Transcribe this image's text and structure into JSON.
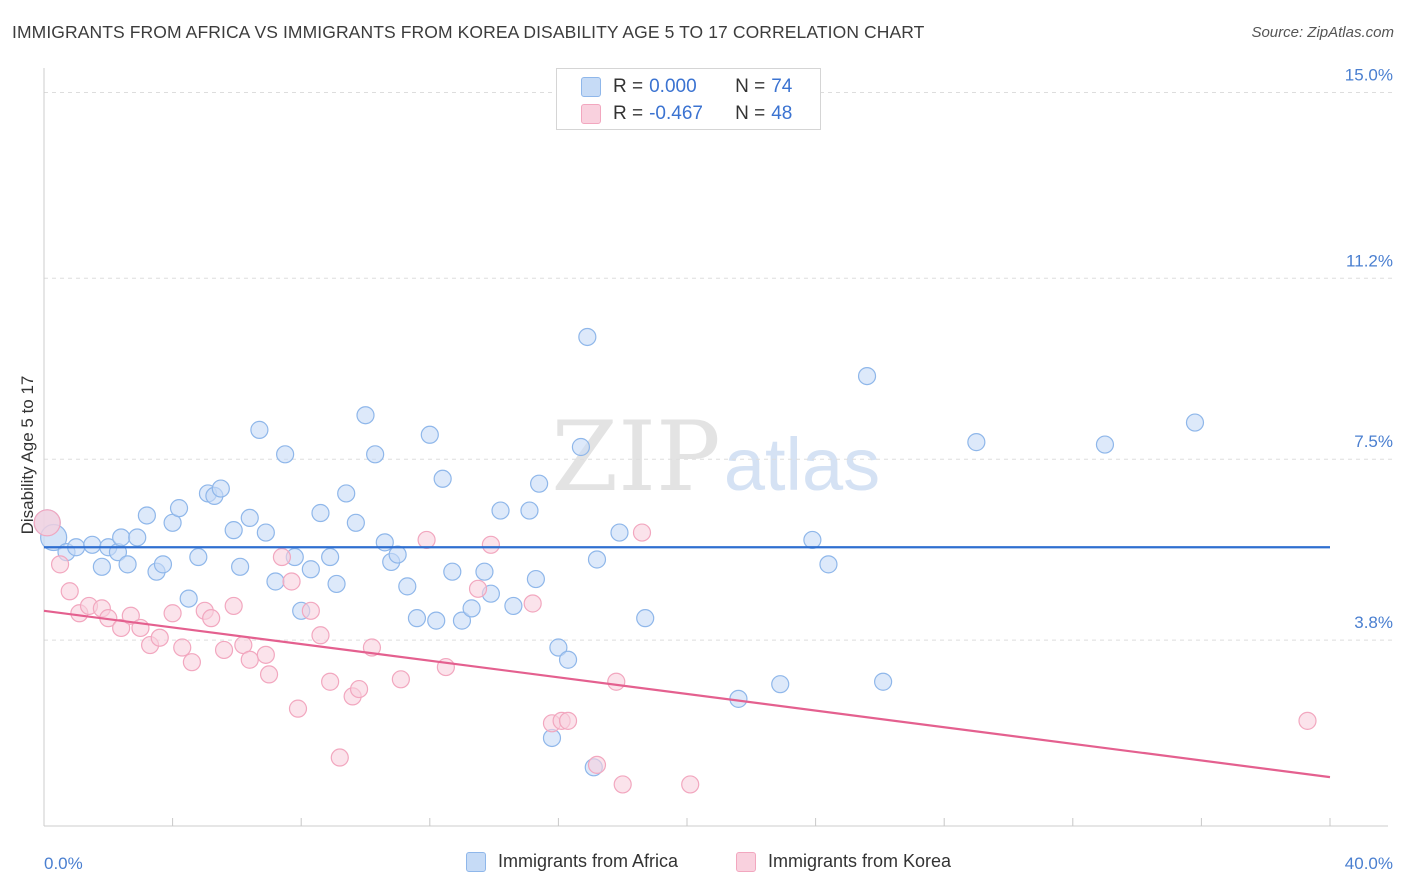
{
  "header": {
    "title": "IMMIGRANTS FROM AFRICA VS IMMIGRANTS FROM KOREA DISABILITY AGE 5 TO 17 CORRELATION CHART",
    "source": "Source: ZipAtlas.com"
  },
  "watermark": {
    "zip": "ZIP",
    "atlas": "atlas"
  },
  "legend": {
    "r_label": "R =",
    "n_label": "N =",
    "rows": [
      {
        "r": "0.000",
        "n": "74",
        "color": "#8fb7ea"
      },
      {
        "r": "-0.467",
        "n": "48",
        "color": "#f2a7bf"
      }
    ]
  },
  "bottom_legend": [
    {
      "label": "Immigrants from Africa",
      "color": "#8fb7ea"
    },
    {
      "label": "Immigrants from Korea",
      "color": "#f2a7bf"
    }
  ],
  "colors": {
    "africa_fill": "#c6dbf6",
    "africa_stroke": "#8fb7ea",
    "africa_line": "#2f6fd0",
    "korea_fill": "#f9d1de",
    "korea_stroke": "#f2a7bf",
    "korea_line": "#e4608f",
    "tick_text": "#4a7fd0",
    "grid": "#dddddd"
  },
  "chart_data": {
    "type": "scatter",
    "title": "IMMIGRANTS FROM AFRICA VS IMMIGRANTS FROM KOREA DISABILITY AGE 5 TO 17 CORRELATION CHART",
    "xlabel": "",
    "ylabel": "Disability Age 5 to 17",
    "xlim": [
      0,
      40
    ],
    "ylim": [
      0,
      15.5
    ],
    "x_tick_labels": [
      "0.0%",
      "40.0%"
    ],
    "y_ticks": [
      3.8,
      7.5,
      11.2,
      15.0
    ],
    "y_tick_labels": [
      "3.8%",
      "7.5%",
      "11.2%",
      "15.0%"
    ],
    "grid": true,
    "legend_position": "top-center",
    "series": [
      {
        "name": "Immigrants from Africa",
        "trend": {
          "r": 0.0,
          "n": 74,
          "y_start": 5.7,
          "y_end": 5.7
        },
        "points": [
          [
            0.1,
            6.2
          ],
          [
            0.3,
            5.9
          ],
          [
            0.7,
            5.6
          ],
          [
            1.0,
            5.7
          ],
          [
            1.5,
            5.75
          ],
          [
            1.8,
            5.3
          ],
          [
            2.0,
            5.7
          ],
          [
            2.3,
            5.6
          ],
          [
            2.4,
            5.9
          ],
          [
            2.6,
            5.35
          ],
          [
            2.9,
            5.9
          ],
          [
            3.2,
            6.35
          ],
          [
            3.5,
            5.2
          ],
          [
            3.7,
            5.35
          ],
          [
            4.0,
            6.2
          ],
          [
            4.2,
            6.5
          ],
          [
            4.5,
            4.65
          ],
          [
            4.8,
            5.5
          ],
          [
            5.1,
            6.8
          ],
          [
            5.3,
            6.75
          ],
          [
            5.5,
            6.9
          ],
          [
            5.9,
            6.05
          ],
          [
            6.1,
            5.3
          ],
          [
            6.4,
            6.3
          ],
          [
            6.7,
            8.1
          ],
          [
            6.9,
            6.0
          ],
          [
            7.2,
            5.0
          ],
          [
            7.5,
            7.6
          ],
          [
            7.8,
            5.5
          ],
          [
            8.0,
            4.4
          ],
          [
            8.3,
            5.25
          ],
          [
            8.6,
            6.4
          ],
          [
            8.9,
            5.5
          ],
          [
            9.1,
            4.95
          ],
          [
            9.4,
            6.8
          ],
          [
            9.7,
            6.2
          ],
          [
            10.0,
            8.4
          ],
          [
            10.3,
            7.6
          ],
          [
            10.6,
            5.8
          ],
          [
            10.8,
            5.4
          ],
          [
            11.0,
            5.55
          ],
          [
            11.3,
            4.9
          ],
          [
            11.6,
            4.25
          ],
          [
            12.0,
            8.0
          ],
          [
            12.2,
            4.2
          ],
          [
            12.4,
            7.1
          ],
          [
            12.7,
            5.2
          ],
          [
            13.0,
            4.2
          ],
          [
            13.3,
            4.45
          ],
          [
            13.7,
            5.2
          ],
          [
            13.9,
            4.75
          ],
          [
            14.2,
            6.45
          ],
          [
            14.6,
            4.5
          ],
          [
            15.1,
            6.45
          ],
          [
            15.3,
            5.05
          ],
          [
            15.4,
            7.0
          ],
          [
            15.8,
            1.8
          ],
          [
            16.0,
            3.65
          ],
          [
            16.3,
            3.4
          ],
          [
            16.7,
            7.75
          ],
          [
            16.9,
            10.0
          ],
          [
            17.1,
            1.2
          ],
          [
            17.2,
            5.45
          ],
          [
            17.9,
            6.0
          ],
          [
            18.7,
            4.25
          ],
          [
            21.6,
            2.6
          ],
          [
            22.9,
            2.9
          ],
          [
            23.9,
            5.85
          ],
          [
            24.4,
            5.35
          ],
          [
            25.6,
            9.2
          ],
          [
            26.1,
            2.95
          ],
          [
            29.0,
            7.85
          ],
          [
            33.0,
            7.8
          ],
          [
            35.8,
            8.25
          ]
        ]
      },
      {
        "name": "Immigrants from Korea",
        "trend": {
          "r": -0.467,
          "n": 48,
          "y_start": 4.4,
          "y_end": 1.0
        },
        "points": [
          [
            0.1,
            6.2
          ],
          [
            0.5,
            5.35
          ],
          [
            0.8,
            4.8
          ],
          [
            1.1,
            4.35
          ],
          [
            1.4,
            4.5
          ],
          [
            1.8,
            4.45
          ],
          [
            2.0,
            4.25
          ],
          [
            2.4,
            4.05
          ],
          [
            2.7,
            4.3
          ],
          [
            3.0,
            4.05
          ],
          [
            3.3,
            3.7
          ],
          [
            3.6,
            3.85
          ],
          [
            4.0,
            4.35
          ],
          [
            4.3,
            3.65
          ],
          [
            4.6,
            3.35
          ],
          [
            5.0,
            4.4
          ],
          [
            5.2,
            4.25
          ],
          [
            5.6,
            3.6
          ],
          [
            5.9,
            4.5
          ],
          [
            6.2,
            3.7
          ],
          [
            6.4,
            3.4
          ],
          [
            6.9,
            3.5
          ],
          [
            7.0,
            3.1
          ],
          [
            7.4,
            5.5
          ],
          [
            7.7,
            5.0
          ],
          [
            7.9,
            2.4
          ],
          [
            8.3,
            4.4
          ],
          [
            8.6,
            3.9
          ],
          [
            8.9,
            2.95
          ],
          [
            9.2,
            1.4
          ],
          [
            9.6,
            2.65
          ],
          [
            9.8,
            2.8
          ],
          [
            10.2,
            3.65
          ],
          [
            11.1,
            3.0
          ],
          [
            11.9,
            5.85
          ],
          [
            12.5,
            3.25
          ],
          [
            13.5,
            4.85
          ],
          [
            13.9,
            5.75
          ],
          [
            15.2,
            4.55
          ],
          [
            15.8,
            2.1
          ],
          [
            16.1,
            2.15
          ],
          [
            16.3,
            2.15
          ],
          [
            17.2,
            1.25
          ],
          [
            17.8,
            2.95
          ],
          [
            18.0,
            0.85
          ],
          [
            18.6,
            6.0
          ],
          [
            20.1,
            0.85
          ],
          [
            39.3,
            2.15
          ]
        ]
      }
    ]
  }
}
